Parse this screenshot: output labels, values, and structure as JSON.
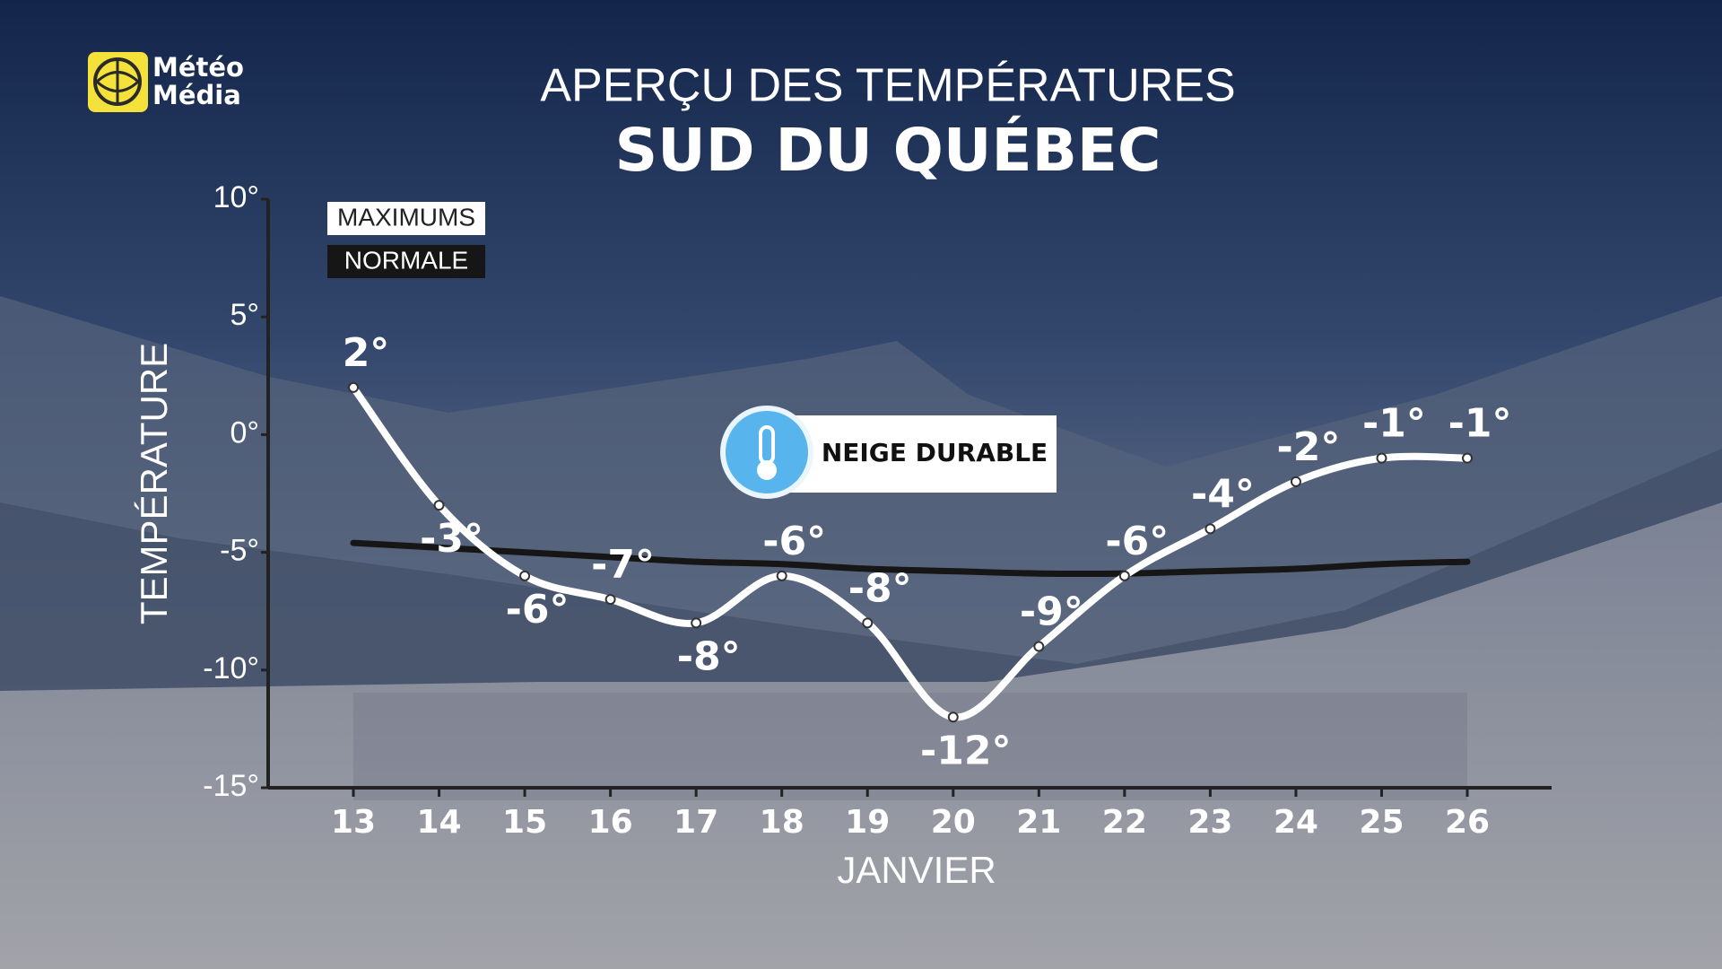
{
  "logo": {
    "line1": "Météo",
    "line2": "Média"
  },
  "chart_data": {
    "type": "line",
    "title": "APERÇU DES TEMPÉRATURES",
    "subtitle": "SUD DU QUÉBEC",
    "x_label": "JANVIER",
    "y_label": "TEMPÉRATURE",
    "categories": [
      "13",
      "14",
      "15",
      "16",
      "17",
      "18",
      "19",
      "20",
      "21",
      "22",
      "23",
      "24",
      "25",
      "26"
    ],
    "ylim": [
      -15,
      10
    ],
    "yticks": [
      {
        "value": 10,
        "label": "10°"
      },
      {
        "value": 5,
        "label": "5°"
      },
      {
        "value": 0,
        "label": "0°"
      },
      {
        "value": -5,
        "label": "-5°"
      },
      {
        "value": -10,
        "label": "-10°"
      },
      {
        "value": -15,
        "label": "-15°"
      }
    ],
    "legend": "upper left",
    "series": [
      {
        "name": "MAXIMUMS",
        "color": "#ffffff",
        "values": [
          2,
          -3,
          -6,
          -7,
          -8,
          -6,
          -8,
          -12,
          -9,
          -6,
          -4,
          -2,
          -1,
          -1
        ],
        "value_labels": [
          "2°",
          "-3°",
          "-6°",
          "-7°",
          "-8°",
          "-6°",
          "-8°",
          "-12°",
          "-9°",
          "-6°",
          "-4°",
          "-2°",
          "-1°",
          "-1°"
        ]
      },
      {
        "name": "NORMALE",
        "color": "#161616",
        "values": [
          -4.6,
          -4.8,
          -5.0,
          -5.2,
          -5.4,
          -5.5,
          -5.7,
          -5.8,
          -5.9,
          -5.9,
          -5.8,
          -5.7,
          -5.5,
          -5.4
        ]
      }
    ],
    "annotation": "NEIGE DURABLE"
  }
}
